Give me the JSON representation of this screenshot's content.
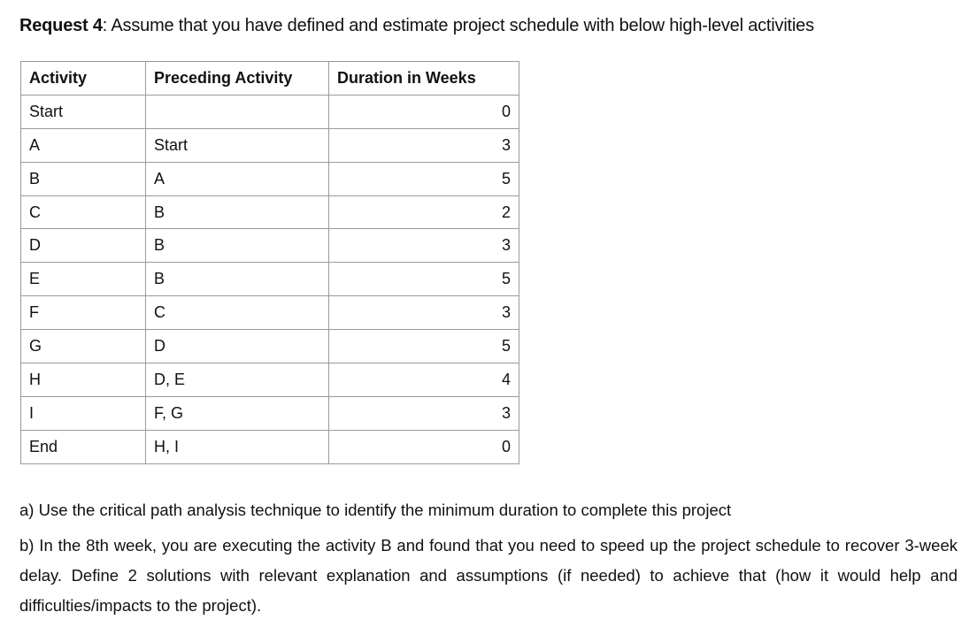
{
  "request": {
    "label": "Request 4",
    "text": ": Assume that you have defined and estimate project schedule with below high-level activities"
  },
  "table": {
    "headers": [
      "Activity",
      "Preceding Activity",
      "Duration in Weeks"
    ],
    "rows": [
      {
        "activity": "Start",
        "preceding": "",
        "duration": "0"
      },
      {
        "activity": "A",
        "preceding": "Start",
        "duration": "3"
      },
      {
        "activity": "B",
        "preceding": "A",
        "duration": "5"
      },
      {
        "activity": "C",
        "preceding": "B",
        "duration": "2"
      },
      {
        "activity": "D",
        "preceding": "B",
        "duration": "3"
      },
      {
        "activity": "E",
        "preceding": "B",
        "duration": "5"
      },
      {
        "activity": "F",
        "preceding": "C",
        "duration": "3"
      },
      {
        "activity": "G",
        "preceding": "D",
        "duration": "5"
      },
      {
        "activity": "H",
        "preceding": "D, E",
        "duration": "4"
      },
      {
        "activity": "I",
        "preceding": "F, G",
        "duration": "3"
      },
      {
        "activity": "End",
        "preceding": "H, I",
        "duration": "0"
      }
    ]
  },
  "questions": {
    "a": "a) Use the critical path analysis technique to identify the minimum duration to complete this project",
    "b": "b) In the 8th week, you are executing the activity B and found that you need to speed up the project schedule to recover 3-week delay. Define 2 solutions with relevant explanation and assumptions (if needed) to achieve that (how it would help and difficulties/impacts to the project)."
  }
}
